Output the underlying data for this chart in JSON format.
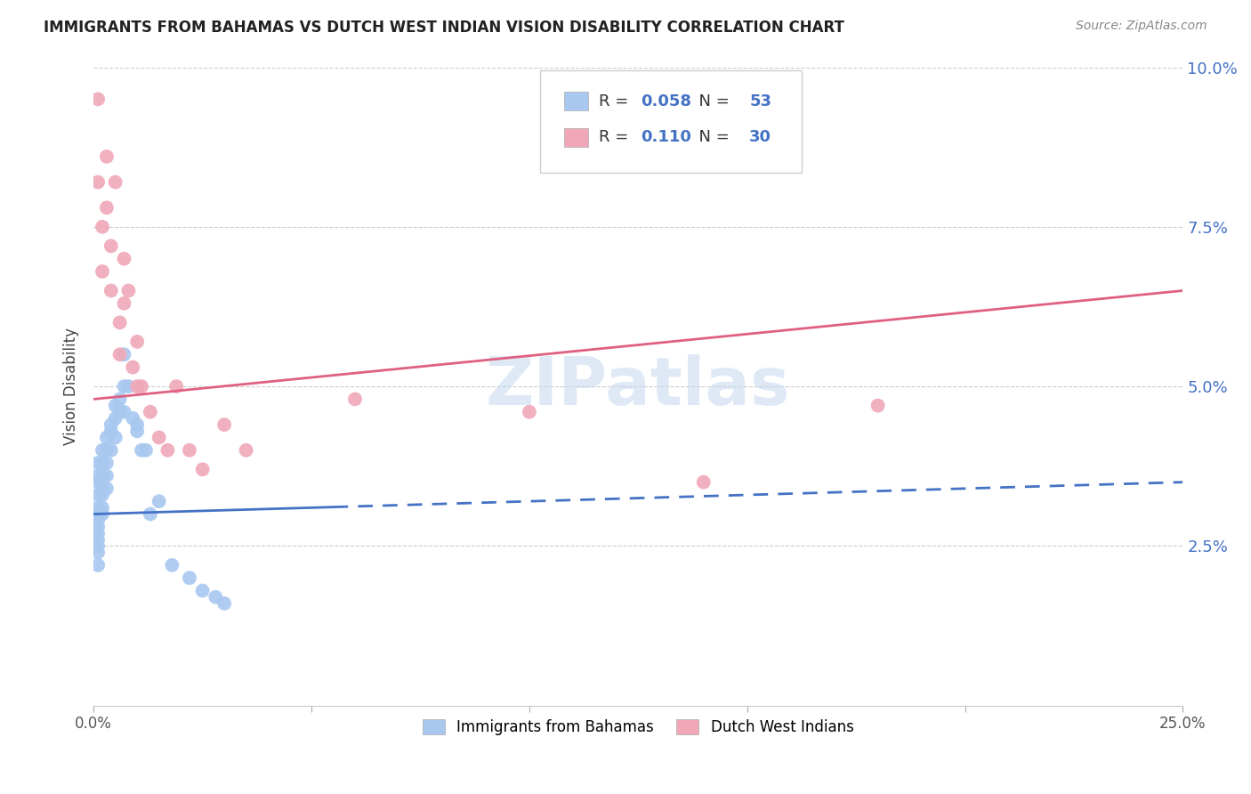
{
  "title": "IMMIGRANTS FROM BAHAMAS VS DUTCH WEST INDIAN VISION DISABILITY CORRELATION CHART",
  "source": "Source: ZipAtlas.com",
  "ylabel": "Vision Disability",
  "xlim": [
    0,
    0.25
  ],
  "ylim": [
    0,
    0.1
  ],
  "yticks": [
    0.0,
    0.025,
    0.05,
    0.075,
    0.1
  ],
  "ytick_labels": [
    "",
    "2.5%",
    "5.0%",
    "7.5%",
    "10.0%"
  ],
  "xticks": [
    0.0,
    0.05,
    0.1,
    0.15,
    0.2,
    0.25
  ],
  "xtick_labels": [
    "0.0%",
    "",
    "",
    "",
    "",
    "25.0%"
  ],
  "blue_R": 0.058,
  "blue_N": 53,
  "pink_R": 0.11,
  "pink_N": 30,
  "blue_color": "#a8c8f0",
  "pink_color": "#f0a8b8",
  "trend_blue": "#4472c4",
  "trend_pink": "#e06080",
  "legend_label_blue": "Immigrants from Bahamas",
  "legend_label_pink": "Dutch West Indians",
  "watermark": "ZIPatlas",
  "blue_x": [
    0.0,
    0.0,
    0.0,
    0.0,
    0.001,
    0.001,
    0.001,
    0.001,
    0.001,
    0.001,
    0.001,
    0.001,
    0.001,
    0.001,
    0.001,
    0.001,
    0.001,
    0.002,
    0.002,
    0.002,
    0.002,
    0.002,
    0.002,
    0.002,
    0.003,
    0.003,
    0.003,
    0.003,
    0.003,
    0.004,
    0.004,
    0.004,
    0.005,
    0.005,
    0.005,
    0.006,
    0.006,
    0.007,
    0.007,
    0.007,
    0.008,
    0.009,
    0.01,
    0.01,
    0.011,
    0.012,
    0.013,
    0.015,
    0.018,
    0.022,
    0.025,
    0.028,
    0.03
  ],
  "blue_y": [
    0.028,
    0.027,
    0.026,
    0.025,
    0.038,
    0.036,
    0.035,
    0.033,
    0.031,
    0.03,
    0.029,
    0.028,
    0.027,
    0.026,
    0.025,
    0.024,
    0.022,
    0.04,
    0.038,
    0.036,
    0.034,
    0.033,
    0.031,
    0.03,
    0.042,
    0.04,
    0.038,
    0.036,
    0.034,
    0.044,
    0.043,
    0.04,
    0.047,
    0.045,
    0.042,
    0.048,
    0.046,
    0.055,
    0.05,
    0.046,
    0.05,
    0.045,
    0.044,
    0.043,
    0.04,
    0.04,
    0.03,
    0.032,
    0.022,
    0.02,
    0.018,
    0.017,
    0.016
  ],
  "pink_x": [
    0.001,
    0.001,
    0.002,
    0.002,
    0.003,
    0.003,
    0.004,
    0.004,
    0.005,
    0.006,
    0.006,
    0.007,
    0.007,
    0.008,
    0.009,
    0.01,
    0.01,
    0.011,
    0.013,
    0.015,
    0.017,
    0.019,
    0.022,
    0.025,
    0.03,
    0.035,
    0.06,
    0.1,
    0.14,
    0.18
  ],
  "pink_y": [
    0.095,
    0.082,
    0.075,
    0.068,
    0.086,
    0.078,
    0.072,
    0.065,
    0.082,
    0.06,
    0.055,
    0.07,
    0.063,
    0.065,
    0.053,
    0.057,
    0.05,
    0.05,
    0.046,
    0.042,
    0.04,
    0.05,
    0.04,
    0.037,
    0.044,
    0.04,
    0.048,
    0.046,
    0.035,
    0.047
  ],
  "blue_trend_x0": 0.0,
  "blue_trend_x_solid_end": 0.055,
  "blue_trend_x_dash_end": 0.25,
  "blue_trend_y0": 0.03,
  "blue_trend_y_end": 0.035,
  "pink_trend_x0": 0.0,
  "pink_trend_x_end": 0.25,
  "pink_trend_y0": 0.048,
  "pink_trend_y_end": 0.065
}
